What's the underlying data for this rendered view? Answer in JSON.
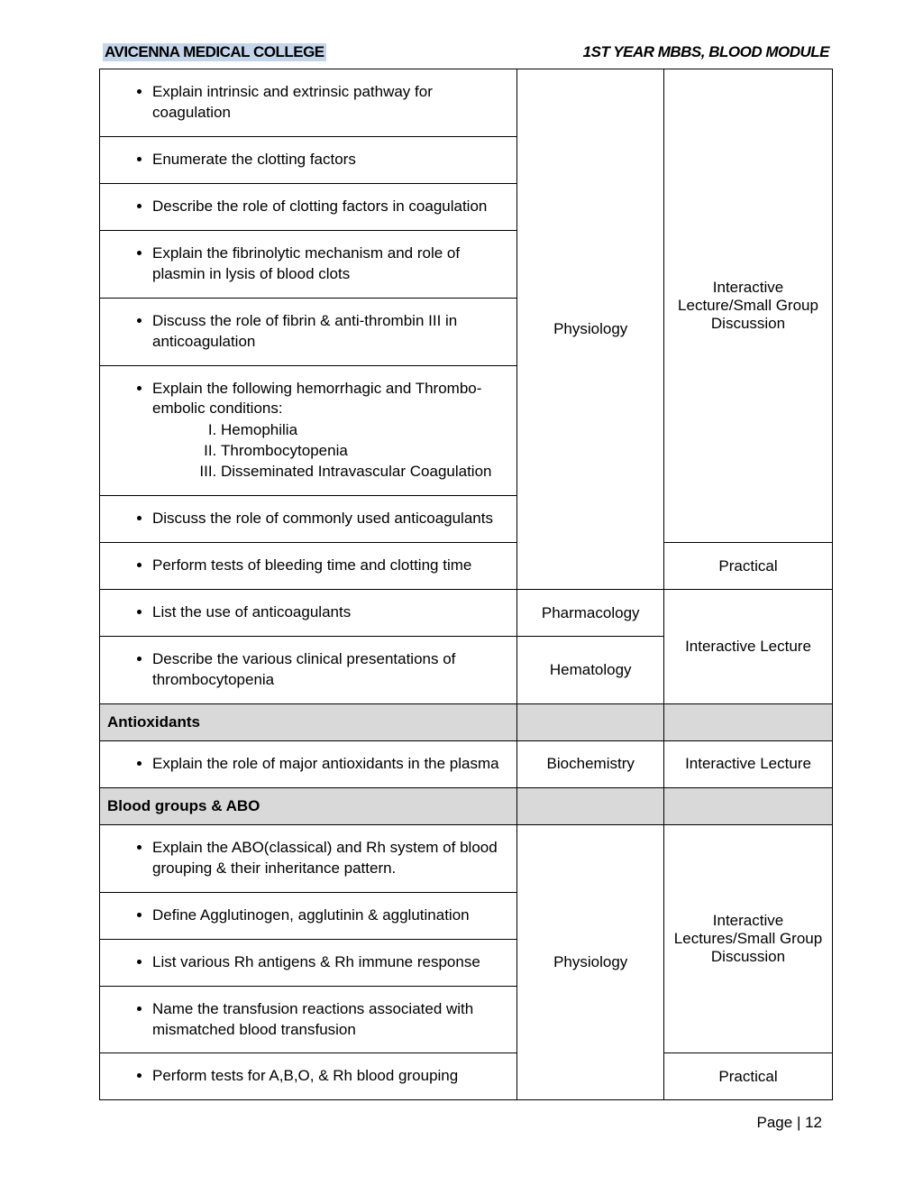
{
  "header": {
    "college": "AVICENNA MEDICAL COLLEGE",
    "module": "1ST YEAR MBBS, BLOOD MODULE"
  },
  "rows": {
    "r1": "Explain intrinsic and extrinsic pathway for coagulation",
    "r2": "Enumerate the clotting factors",
    "r3": "Describe the role of clotting factors in coagulation",
    "r4": "Explain the fibrinolytic mechanism and role of plasmin in lysis of blood clots",
    "r5": "Discuss the role of fibrin & anti-thrombin III in anticoagulation",
    "r6_intro": "Explain the following hemorrhagic and Thrombo-embolic conditions:",
    "r6_i": "Hemophilia",
    "r6_ii": "Thrombocytopenia",
    "r6_iii": "Disseminated Intravascular Coagulation",
    "r7": "Discuss the role of commonly used anticoagulants",
    "r8": "Perform tests of bleeding time and clotting time",
    "r9": "List the use of anticoagulants",
    "r10": "Describe the various clinical presentations of thrombocytopenia",
    "r11": "Explain the role of major antioxidants in the plasma",
    "r12": "Explain the ABO(classical) and Rh system of blood grouping & their inheritance pattern.",
    "r13": "Define Agglutinogen, agglutinin & agglutination",
    "r14": "List various Rh antigens & Rh immune response",
    "r15": "Name the transfusion reactions associated with mismatched blood transfusion",
    "r16": "Perform tests for A,B,O, & Rh blood grouping"
  },
  "subjects": {
    "physiology": "Physiology",
    "pharmacology": "Pharmacology",
    "hematology": "Hematology",
    "biochemistry": "Biochemistry"
  },
  "methods": {
    "ilsgd": "Interactive Lecture/Small Group Discussion",
    "practical": "Practical",
    "il": "Interactive Lecture",
    "ilsgd2": "Interactive Lectures/Small Group Discussion"
  },
  "sections": {
    "antioxidants": "Antioxidants",
    "bloodgroups": "Blood groups &  ABO"
  },
  "footer": "Page | 12"
}
